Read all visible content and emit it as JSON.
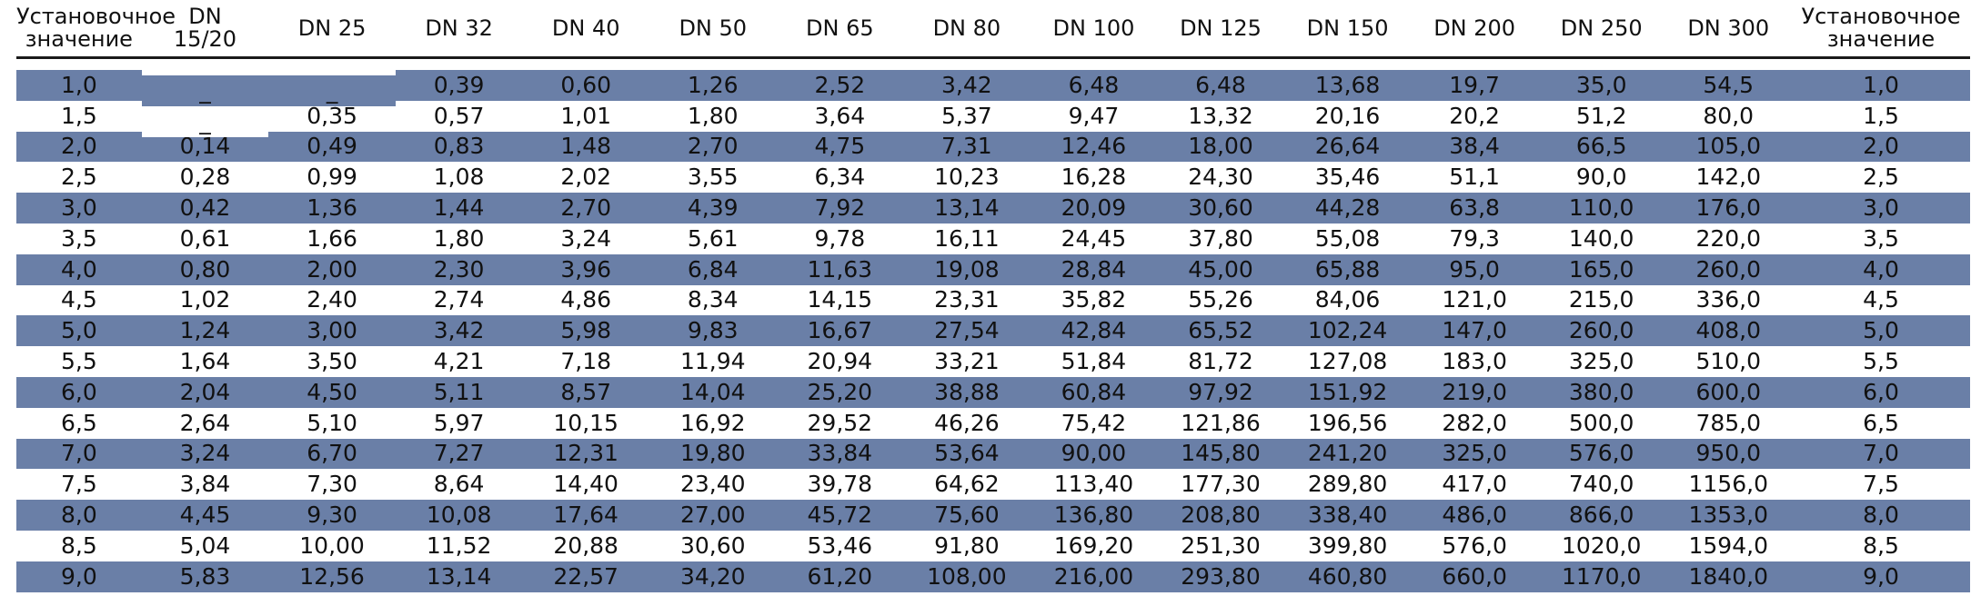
{
  "table": {
    "headers": [
      "Установочное значение",
      "DN 15/20",
      "DN 25",
      "DN 32",
      "DN 40",
      "DN 50",
      "DN 65",
      "DN 80",
      "DN 100",
      "DN 125",
      "DN 150",
      "DN 200",
      "DN 250",
      "DN 300",
      "Установочное значение"
    ],
    "header_lines": [
      [
        "Установочное",
        "значение"
      ],
      [
        "DN",
        "15/20"
      ],
      [
        "DN 25"
      ],
      [
        "DN 32"
      ],
      [
        "DN 40"
      ],
      [
        "DN 50"
      ],
      [
        "DN 65"
      ],
      [
        "DN 80"
      ],
      [
        "DN 100"
      ],
      [
        "DN 125"
      ],
      [
        "DN 150"
      ],
      [
        "DN 200"
      ],
      [
        "DN 250"
      ],
      [
        "DN 300"
      ],
      [
        "Установочное",
        "значение"
      ]
    ],
    "rows": [
      [
        "1,0",
        "_",
        "_",
        "0,39",
        "0,60",
        "1,26",
        "2,52",
        "3,42",
        "6,48",
        "6,48",
        "13,68",
        "19,7",
        "35,0",
        "54,5",
        "1,0"
      ],
      [
        "1,5",
        "_",
        "0,35",
        "0,57",
        "1,01",
        "1,80",
        "3,64",
        "5,37",
        "9,47",
        "13,32",
        "20,16",
        "20,2",
        "51,2",
        "80,0",
        "1,5"
      ],
      [
        "2,0",
        "0,14",
        "0,49",
        "0,83",
        "1,48",
        "2,70",
        "4,75",
        "7,31",
        "12,46",
        "18,00",
        "26,64",
        "38,4",
        "66,5",
        "105,0",
        "2,0"
      ],
      [
        "2,5",
        "0,28",
        "0,99",
        "1,08",
        "2,02",
        "3,55",
        "6,34",
        "10,23",
        "16,28",
        "24,30",
        "35,46",
        "51,1",
        "90,0",
        "142,0",
        "2,5"
      ],
      [
        "3,0",
        "0,42",
        "1,36",
        "1,44",
        "2,70",
        "4,39",
        "7,92",
        "13,14",
        "20,09",
        "30,60",
        "44,28",
        "63,8",
        "110,0",
        "176,0",
        "3,0"
      ],
      [
        "3,5",
        "0,61",
        "1,66",
        "1,80",
        "3,24",
        "5,61",
        "9,78",
        "16,11",
        "24,45",
        "37,80",
        "55,08",
        "79,3",
        "140,0",
        "220,0",
        "3,5"
      ],
      [
        "4,0",
        "0,80",
        "2,00",
        "2,30",
        "3,96",
        "6,84",
        "11,63",
        "19,08",
        "28,84",
        "45,00",
        "65,88",
        "95,0",
        "165,0",
        "260,0",
        "4,0"
      ],
      [
        "4,5",
        "1,02",
        "2,40",
        "2,74",
        "4,86",
        "8,34",
        "14,15",
        "23,31",
        "35,82",
        "55,26",
        "84,06",
        "121,0",
        "215,0",
        "336,0",
        "4,5"
      ],
      [
        "5,0",
        "1,24",
        "3,00",
        "3,42",
        "5,98",
        "9,83",
        "16,67",
        "27,54",
        "42,84",
        "65,52",
        "102,24",
        "147,0",
        "260,0",
        "408,0",
        "5,0"
      ],
      [
        "5,5",
        "1,64",
        "3,50",
        "4,21",
        "7,18",
        "11,94",
        "20,94",
        "33,21",
        "51,84",
        "81,72",
        "127,08",
        "183,0",
        "325,0",
        "510,0",
        "5,5"
      ],
      [
        "6,0",
        "2,04",
        "4,50",
        "5,11",
        "8,57",
        "14,04",
        "25,20",
        "38,88",
        "60,84",
        "97,92",
        "151,92",
        "219,0",
        "380,0",
        "600,0",
        "6,0"
      ],
      [
        "6,5",
        "2,64",
        "5,10",
        "5,97",
        "10,15",
        "16,92",
        "29,52",
        "46,26",
        "75,42",
        "121,86",
        "196,56",
        "282,0",
        "500,0",
        "785,0",
        "6,5"
      ],
      [
        "7,0",
        "3,24",
        "6,70",
        "7,27",
        "12,31",
        "19,80",
        "33,84",
        "53,64",
        "90,00",
        "145,80",
        "241,20",
        "325,0",
        "576,0",
        "950,0",
        "7,0"
      ],
      [
        "7,5",
        "3,84",
        "7,30",
        "8,64",
        "14,40",
        "23,40",
        "39,78",
        "64,62",
        "113,40",
        "177,30",
        "289,80",
        "417,0",
        "740,0",
        "1156,0",
        "7,5"
      ],
      [
        "8,0",
        "4,45",
        "9,30",
        "10,08",
        "17,64",
        "27,00",
        "45,72",
        "75,60",
        "136,80",
        "208,80",
        "338,40",
        "486,0",
        "866,0",
        "1353,0",
        "8,0"
      ],
      [
        "8,5",
        "5,04",
        "10,00",
        "11,52",
        "20,88",
        "30,60",
        "53,46",
        "91,80",
        "169,20",
        "251,30",
        "399,80",
        "576,0",
        "1020,0",
        "1594,0",
        "8,5"
      ],
      [
        "9,0",
        "5,83",
        "12,56",
        "13,14",
        "22,57",
        "34,20",
        "61,20",
        "108,00",
        "216,00",
        "293,80",
        "460,80",
        "660,0",
        "1170,0",
        "1840,0",
        "9,0"
      ]
    ],
    "colors": {
      "shaded_row": "#6a7fa7",
      "plain_row": "#ffffff",
      "text": "#111111",
      "rule": "#1a1a1a"
    }
  }
}
